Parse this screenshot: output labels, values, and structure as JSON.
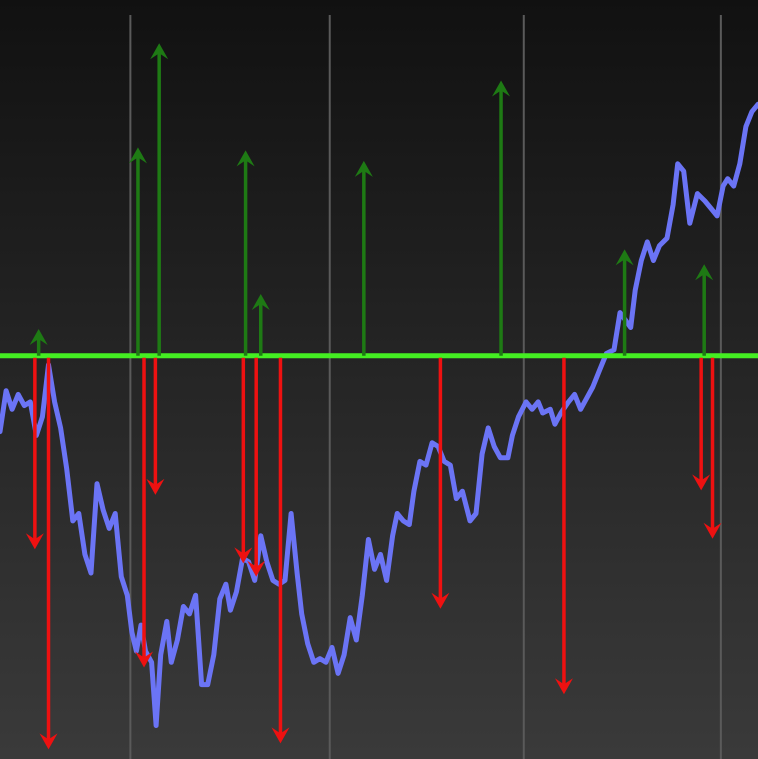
{
  "chart_data": {
    "type": "line",
    "title": "",
    "xlabel": "",
    "ylabel": "",
    "grid": "vertical",
    "legend": "none",
    "xlim": [
      0,
      100
    ],
    "ylim": [
      0,
      100
    ],
    "baseline_y": 54.2,
    "vertical_gridlines_x": [
      17.2,
      43.5,
      69.1,
      95.1
    ],
    "colors": {
      "background_top": "#111111",
      "background_bottom": "#3a3a3a",
      "price_line": "#6b74f5",
      "baseline": "#44ee22",
      "up_arrow": "#1e7a14",
      "down_arrow": "#ee1111",
      "grid": "#5a5a5a"
    },
    "series": [
      {
        "values": [
          [
            0,
            44
          ],
          [
            0.8,
            49.5
          ],
          [
            1.6,
            47
          ],
          [
            2.4,
            49
          ],
          [
            3.2,
            47.5
          ],
          [
            4,
            48
          ],
          [
            4.8,
            43.5
          ],
          [
            5.6,
            46
          ],
          [
            6.4,
            53
          ],
          [
            7.2,
            48
          ],
          [
            8,
            44.5
          ],
          [
            8.8,
            39
          ],
          [
            9.6,
            32
          ],
          [
            10.4,
            33
          ],
          [
            11.2,
            27.5
          ],
          [
            12,
            25
          ],
          [
            12.8,
            37
          ],
          [
            13.6,
            33.5
          ],
          [
            14.4,
            31
          ],
          [
            15.2,
            33
          ],
          [
            16,
            24.5
          ],
          [
            16.8,
            22
          ],
          [
            17.4,
            17
          ],
          [
            18,
            14.5
          ],
          [
            18.6,
            18
          ],
          [
            19.2,
            14.5
          ],
          [
            20,
            13
          ],
          [
            20.6,
            4.5
          ],
          [
            21.2,
            14
          ],
          [
            22,
            18.5
          ],
          [
            22.6,
            13
          ],
          [
            23.4,
            16
          ],
          [
            24.2,
            20.5
          ],
          [
            25,
            19.5
          ],
          [
            25.8,
            22
          ],
          [
            26.6,
            10
          ],
          [
            27.4,
            10
          ],
          [
            28.2,
            14
          ],
          [
            29,
            21.5
          ],
          [
            29.8,
            23.5
          ],
          [
            30.4,
            20
          ],
          [
            31.2,
            22.5
          ],
          [
            32,
            27
          ],
          [
            32.8,
            26.5
          ],
          [
            33.6,
            24
          ],
          [
            34.4,
            30
          ],
          [
            35.2,
            26.5
          ],
          [
            36,
            24
          ],
          [
            36.8,
            23.5
          ],
          [
            37.6,
            24
          ],
          [
            38.4,
            33
          ],
          [
            39.2,
            25
          ],
          [
            39.8,
            19.5
          ],
          [
            40.6,
            15.5
          ],
          [
            41.4,
            13
          ],
          [
            42.2,
            13.5
          ],
          [
            43,
            13
          ],
          [
            43.8,
            15
          ],
          [
            44.6,
            11.5
          ],
          [
            45.4,
            14
          ],
          [
            46.2,
            19
          ],
          [
            47,
            16
          ],
          [
            47.8,
            22
          ],
          [
            48.6,
            29.5
          ],
          [
            49.4,
            25.5
          ],
          [
            50.2,
            27.5
          ],
          [
            51,
            24
          ],
          [
            51.8,
            30
          ],
          [
            52.4,
            33
          ],
          [
            53.2,
            32
          ],
          [
            54,
            31.5
          ],
          [
            54.6,
            36
          ],
          [
            55.4,
            40
          ],
          [
            56.2,
            39.5
          ],
          [
            57,
            42.5
          ],
          [
            57.8,
            42
          ],
          [
            58.6,
            40
          ],
          [
            59.4,
            39.5
          ],
          [
            60.2,
            35
          ],
          [
            61,
            36
          ],
          [
            62,
            32
          ],
          [
            62.8,
            33
          ],
          [
            63.6,
            41
          ],
          [
            64.4,
            44.5
          ],
          [
            65.2,
            42
          ],
          [
            66,
            40.5
          ],
          [
            67,
            40.5
          ],
          [
            67.6,
            43.5
          ],
          [
            68.4,
            46
          ],
          [
            69.4,
            48
          ],
          [
            70.2,
            47
          ],
          [
            71,
            48
          ],
          [
            71.6,
            46.5
          ],
          [
            72.6,
            47
          ],
          [
            73.2,
            45
          ],
          [
            74,
            46.5
          ],
          [
            75,
            48
          ],
          [
            75.8,
            49
          ],
          [
            76.6,
            47
          ],
          [
            77.4,
            48.5
          ],
          [
            78.2,
            50
          ],
          [
            79,
            52
          ],
          [
            80,
            54.5
          ],
          [
            81,
            55
          ],
          [
            81.8,
            60
          ],
          [
            83.2,
            58
          ],
          [
            83.8,
            63
          ],
          [
            84.6,
            67
          ],
          [
            85.4,
            69.5
          ],
          [
            86.2,
            67
          ],
          [
            87,
            69
          ],
          [
            88,
            70
          ],
          [
            88.8,
            74.5
          ],
          [
            89.4,
            80
          ],
          [
            90.2,
            79
          ],
          [
            91,
            72
          ],
          [
            92,
            76
          ],
          [
            93,
            75
          ],
          [
            93.8,
            74
          ],
          [
            94.6,
            73
          ],
          [
            95.4,
            77
          ],
          [
            96,
            78
          ],
          [
            96.8,
            77
          ],
          [
            97.6,
            80
          ],
          [
            98.4,
            85
          ],
          [
            99.2,
            87
          ],
          [
            100,
            88
          ]
        ]
      }
    ],
    "up_arrows": [
      {
        "x": 5.1,
        "top": 57.8
      },
      {
        "x": 18.2,
        "top": 82.2
      },
      {
        "x": 21,
        "top": 96.2
      },
      {
        "x": 32.4,
        "top": 81.8
      },
      {
        "x": 34.4,
        "top": 62.5
      },
      {
        "x": 48,
        "top": 80.4
      },
      {
        "x": 66.1,
        "top": 91.2
      },
      {
        "x": 82.4,
        "top": 68.5
      },
      {
        "x": 92.9,
        "top": 66.5
      }
    ],
    "down_arrows": [
      {
        "x": 4.6,
        "bottom": 28.2
      },
      {
        "x": 6.4,
        "bottom": 1.3
      },
      {
        "x": 19,
        "bottom": 12.3
      },
      {
        "x": 20.5,
        "bottom": 35.5
      },
      {
        "x": 32.1,
        "bottom": 26.3
      },
      {
        "x": 33.8,
        "bottom": 24.5
      },
      {
        "x": 37,
        "bottom": 2.1
      },
      {
        "x": 58.1,
        "bottom": 20.2
      },
      {
        "x": 74.4,
        "bottom": 8.7
      },
      {
        "x": 92.5,
        "bottom": 36.1
      },
      {
        "x": 94,
        "bottom": 29.6
      }
    ]
  }
}
